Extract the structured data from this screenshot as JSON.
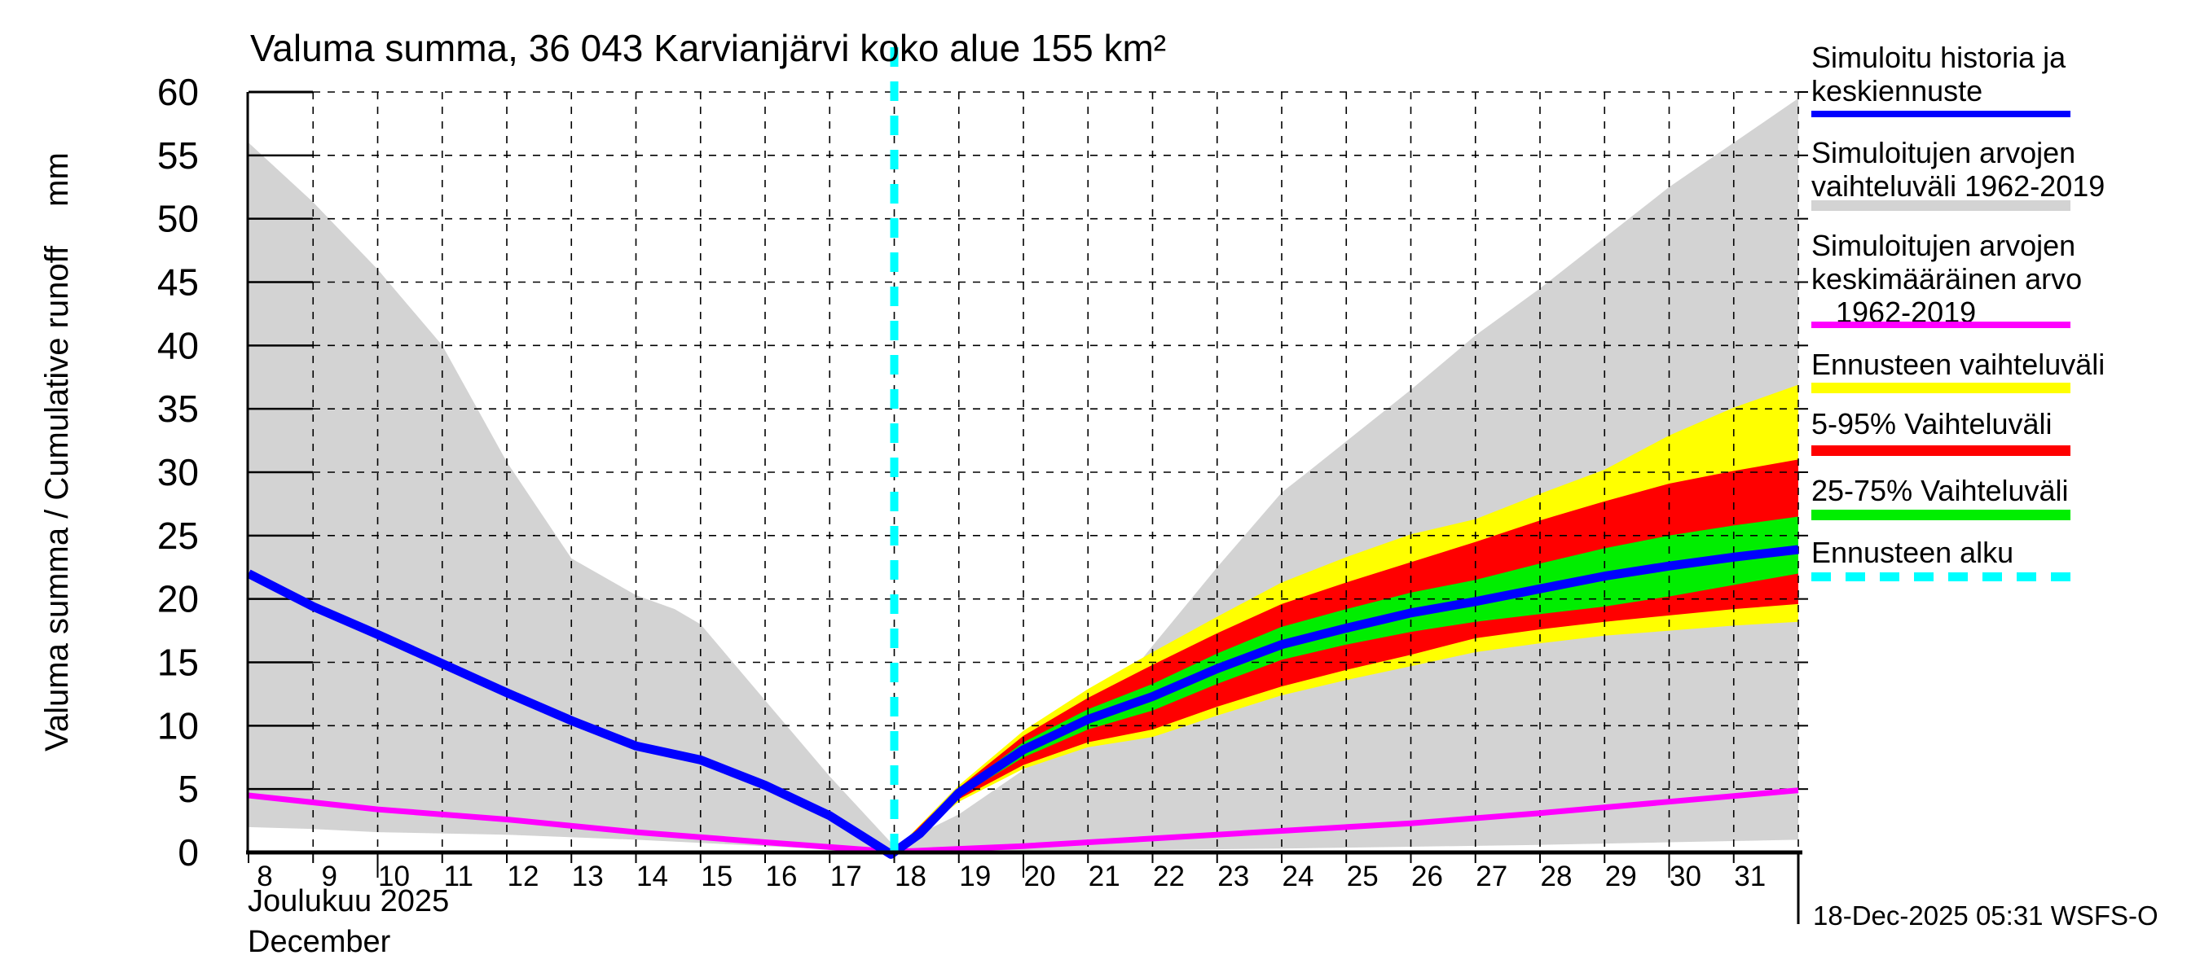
{
  "title": "Valuma summa, 36 043 Karvianjärvi koko alue 155 km²",
  "axes": {
    "y_label": "Valuma summa / Cumulative runoff",
    "y_unit": "mm",
    "x_label_fi": "Joulukuu 2025",
    "x_label_en": "December"
  },
  "footer": {
    "timestamp": "18-Dec-2025 05:31 WSFS-O"
  },
  "colors": {
    "history_line": "#0000ff",
    "sim_range_band": "#d3d3d3",
    "sim_mean_line": "#ff00ff",
    "forecast_range_band": "#ffff00",
    "p5_95_band": "#ff0000",
    "p25_75_band": "#00ee00",
    "forecast_start_line": "#00ffff",
    "grid": "#000000",
    "background": "#ffffff"
  },
  "legend": [
    {
      "lines": [
        "Simuloitu historia ja",
        "keskiennuste"
      ],
      "swatch": "line",
      "color": "#0000ff"
    },
    {
      "lines": [
        "Simuloitujen arvojen",
        "vaihteluväli 1962-2019"
      ],
      "swatch": "band",
      "color": "#d3d3d3"
    },
    {
      "lines": [
        "Simuloitujen arvojen",
        "keskimääräinen arvo",
        "   1962-2019"
      ],
      "swatch": "line",
      "color": "#ff00ff"
    },
    {
      "lines": [
        "Ennusteen vaihteluväli"
      ],
      "swatch": "band",
      "color": "#ffff00"
    },
    {
      "lines": [
        "5-95% Vaihteluväli"
      ],
      "swatch": "band",
      "color": "#ff0000"
    },
    {
      "lines": [
        "25-75% Vaihteluväli"
      ],
      "swatch": "band",
      "color": "#00ee00"
    },
    {
      "lines": [
        "Ennusteen alku"
      ],
      "swatch": "dashed",
      "color": "#00ffff"
    }
  ],
  "chart_data": {
    "type": "area",
    "title": "Valuma summa, 36 043 Karvianjärvi koko alue 155 km²",
    "xlabel": "Joulukuu 2025 / December",
    "ylabel": "Valuma summa / Cumulative runoff (mm)",
    "xlim": [
      8,
      32
    ],
    "ylim": [
      0,
      60
    ],
    "x_ticks": [
      8,
      9,
      10,
      11,
      12,
      13,
      14,
      15,
      16,
      17,
      18,
      19,
      20,
      21,
      22,
      23,
      24,
      25,
      26,
      27,
      28,
      29,
      30,
      31
    ],
    "y_ticks": [
      0,
      5,
      10,
      15,
      20,
      25,
      30,
      35,
      40,
      45,
      50,
      55,
      60
    ],
    "long_x_ticks": [
      10,
      20,
      30
    ],
    "grid": true,
    "legend_position": "right",
    "forecast_start_x": 18,
    "series": [
      {
        "name": "Simuloitujen arvojen vaihteluväli 1962-2019",
        "role": "band",
        "color": "#d3d3d3",
        "x_upper": [
          8,
          9,
          10,
          11,
          12,
          13,
          14,
          14.6,
          15,
          16,
          17,
          18,
          19,
          20,
          21,
          22,
          23,
          24,
          24.4,
          26,
          27,
          28,
          29,
          30,
          31,
          32
        ],
        "upper": [
          56,
          51.3,
          46,
          40,
          30.8,
          23.2,
          20.3,
          19.2,
          18,
          12,
          6,
          0.5,
          3,
          6.5,
          10,
          16.3,
          22.5,
          28.4,
          30,
          36.5,
          40.8,
          44.5,
          48.5,
          52.5,
          56,
          59.5
        ],
        "x_lower": [
          8,
          9,
          10,
          12,
          14,
          16,
          18,
          20,
          22,
          24,
          26,
          28,
          30,
          32
        ],
        "lower": [
          2.0,
          1.85,
          1.6,
          1.4,
          1.0,
          0.5,
          0,
          0.1,
          0.2,
          0.3,
          0.45,
          0.6,
          0.8,
          1.0
        ]
      },
      {
        "name": "Ennusteen vaihteluväli",
        "role": "band",
        "color": "#ffff00",
        "x_upper": [
          18,
          19,
          20,
          21,
          22,
          23,
          24,
          25,
          26,
          27,
          28,
          29,
          30,
          31,
          32
        ],
        "upper": [
          0.1,
          5.3,
          9.6,
          12.9,
          15.8,
          18.6,
          21.3,
          23.3,
          25.1,
          26.3,
          28.3,
          30.2,
          32.9,
          35.1,
          36.9
        ],
        "x_lower": [
          18,
          19,
          20,
          21,
          22,
          23,
          24,
          25,
          26,
          27,
          28,
          29,
          30,
          31,
          32
        ],
        "lower": [
          0,
          4.0,
          6.6,
          8.3,
          9.1,
          10.8,
          12.4,
          13.6,
          14.7,
          15.8,
          16.5,
          17.1,
          17.5,
          17.9,
          18.2
        ]
      },
      {
        "name": "5-95% Vaihteluväli",
        "role": "band",
        "color": "#ff0000",
        "x_upper": [
          18,
          19,
          20,
          21,
          22,
          23,
          24,
          25,
          26,
          27,
          28,
          29,
          30,
          31,
          32
        ],
        "upper": [
          0.1,
          5.1,
          9.2,
          12.2,
          14.8,
          17.3,
          19.6,
          21.3,
          22.9,
          24.5,
          26.2,
          27.7,
          29.1,
          30.1,
          31.0
        ],
        "x_lower": [
          18,
          19,
          20,
          21,
          22,
          23,
          24,
          25,
          26,
          27,
          28,
          29,
          30,
          31,
          32
        ],
        "lower": [
          0,
          4.2,
          6.9,
          8.7,
          9.7,
          11.5,
          13.1,
          14.4,
          15.6,
          16.9,
          17.6,
          18.2,
          18.7,
          19.2,
          19.6
        ]
      },
      {
        "name": "25-75% Vaihteluväli",
        "role": "band",
        "color": "#00ee00",
        "x_upper": [
          18,
          19,
          20,
          21,
          22,
          23,
          24,
          25,
          26,
          27,
          28,
          29,
          30,
          31,
          32
        ],
        "upper": [
          0,
          4.9,
          8.7,
          11.3,
          13.3,
          15.7,
          17.8,
          19.2,
          20.5,
          21.5,
          22.8,
          24.0,
          25.0,
          25.8,
          26.5
        ],
        "x_lower": [
          18,
          19,
          20,
          21,
          22,
          23,
          24,
          25,
          26,
          27,
          28,
          29,
          30,
          31,
          32
        ],
        "lower": [
          0,
          4.4,
          7.5,
          9.7,
          11.2,
          13.3,
          15.2,
          16.4,
          17.4,
          18.2,
          18.8,
          19.4,
          20.2,
          21.1,
          22.0
        ]
      },
      {
        "name": "Simuloitujen arvojen keskimääräinen arvo 1962-2019",
        "role": "line",
        "color": "#ff00ff",
        "width": 7,
        "x": [
          8,
          10,
          12,
          14,
          16,
          18,
          20,
          22,
          24,
          26,
          28,
          30,
          32
        ],
        "values": [
          4.5,
          3.4,
          2.6,
          1.6,
          0.8,
          0.05,
          0.5,
          1.1,
          1.7,
          2.3,
          3.1,
          4.0,
          4.9
        ]
      },
      {
        "name": "Simuloitu historia ja keskiennuste",
        "role": "line",
        "color": "#0000ff",
        "width": 11,
        "x": [
          8,
          9,
          10,
          11,
          12,
          13,
          14,
          15,
          16,
          17,
          17.5,
          17.95,
          18.4,
          19,
          20,
          21,
          22,
          23,
          24,
          25,
          26,
          27,
          28,
          29,
          30,
          31,
          32
        ],
        "values": [
          22.0,
          19.4,
          17.2,
          14.9,
          12.6,
          10.4,
          8.4,
          7.3,
          5.3,
          2.9,
          1.3,
          -0.15,
          1.5,
          4.7,
          8.1,
          10.5,
          12.3,
          14.5,
          16.4,
          17.7,
          18.9,
          19.8,
          20.8,
          21.8,
          22.6,
          23.3,
          23.9
        ]
      },
      {
        "name": "Ennusteen alku",
        "role": "vline",
        "color": "#00ffff",
        "x": 18,
        "style": "dashed"
      }
    ]
  }
}
